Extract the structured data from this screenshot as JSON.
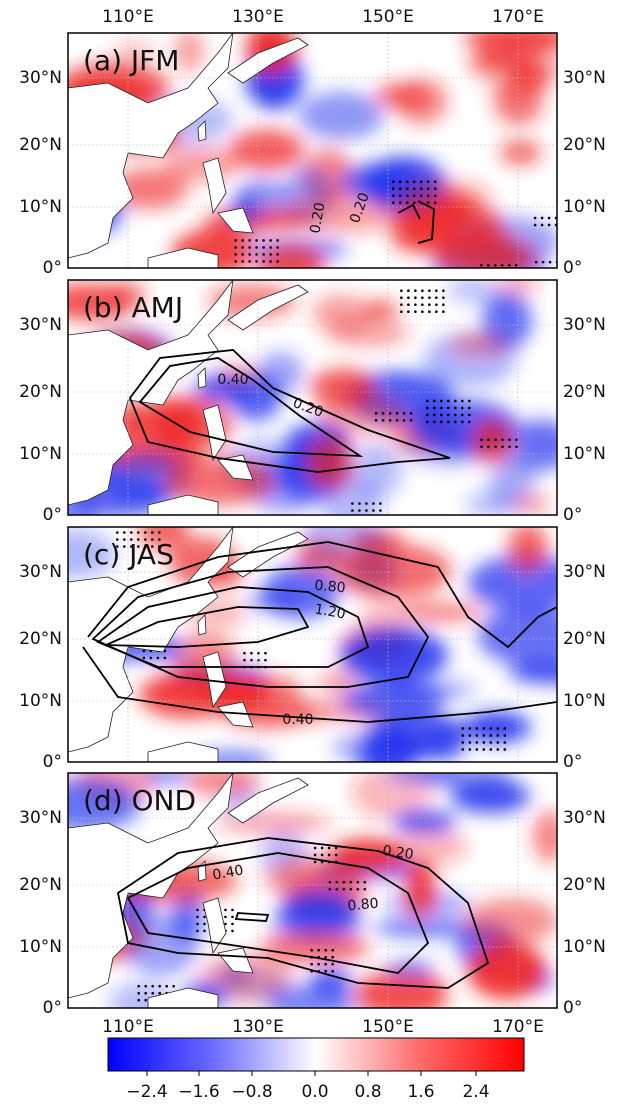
{
  "longitude_labels": [
    "110°E",
    "130°E",
    "150°E",
    "170°E"
  ],
  "latitude_labels": [
    "0°",
    "10°N",
    "20°N",
    "30°N"
  ],
  "panels": [
    {
      "label": "(a) JFM",
      "contour_labels": [
        "0.20",
        "0.20"
      ]
    },
    {
      "label": "(b) AMJ",
      "contour_labels": [
        "0.40",
        "0.20"
      ]
    },
    {
      "label": "(c) JAS",
      "contour_labels": [
        "0.80",
        "1.20",
        "0.40"
      ]
    },
    {
      "label": "(d) OND",
      "contour_labels": [
        "0.20",
        "0.40",
        "0.80"
      ]
    }
  ],
  "colorbar": {
    "tick_labels": [
      "−2.4",
      "−1.6",
      "−0.8",
      "0.0",
      "0.8",
      "1.6",
      "2.4"
    ]
  }
}
